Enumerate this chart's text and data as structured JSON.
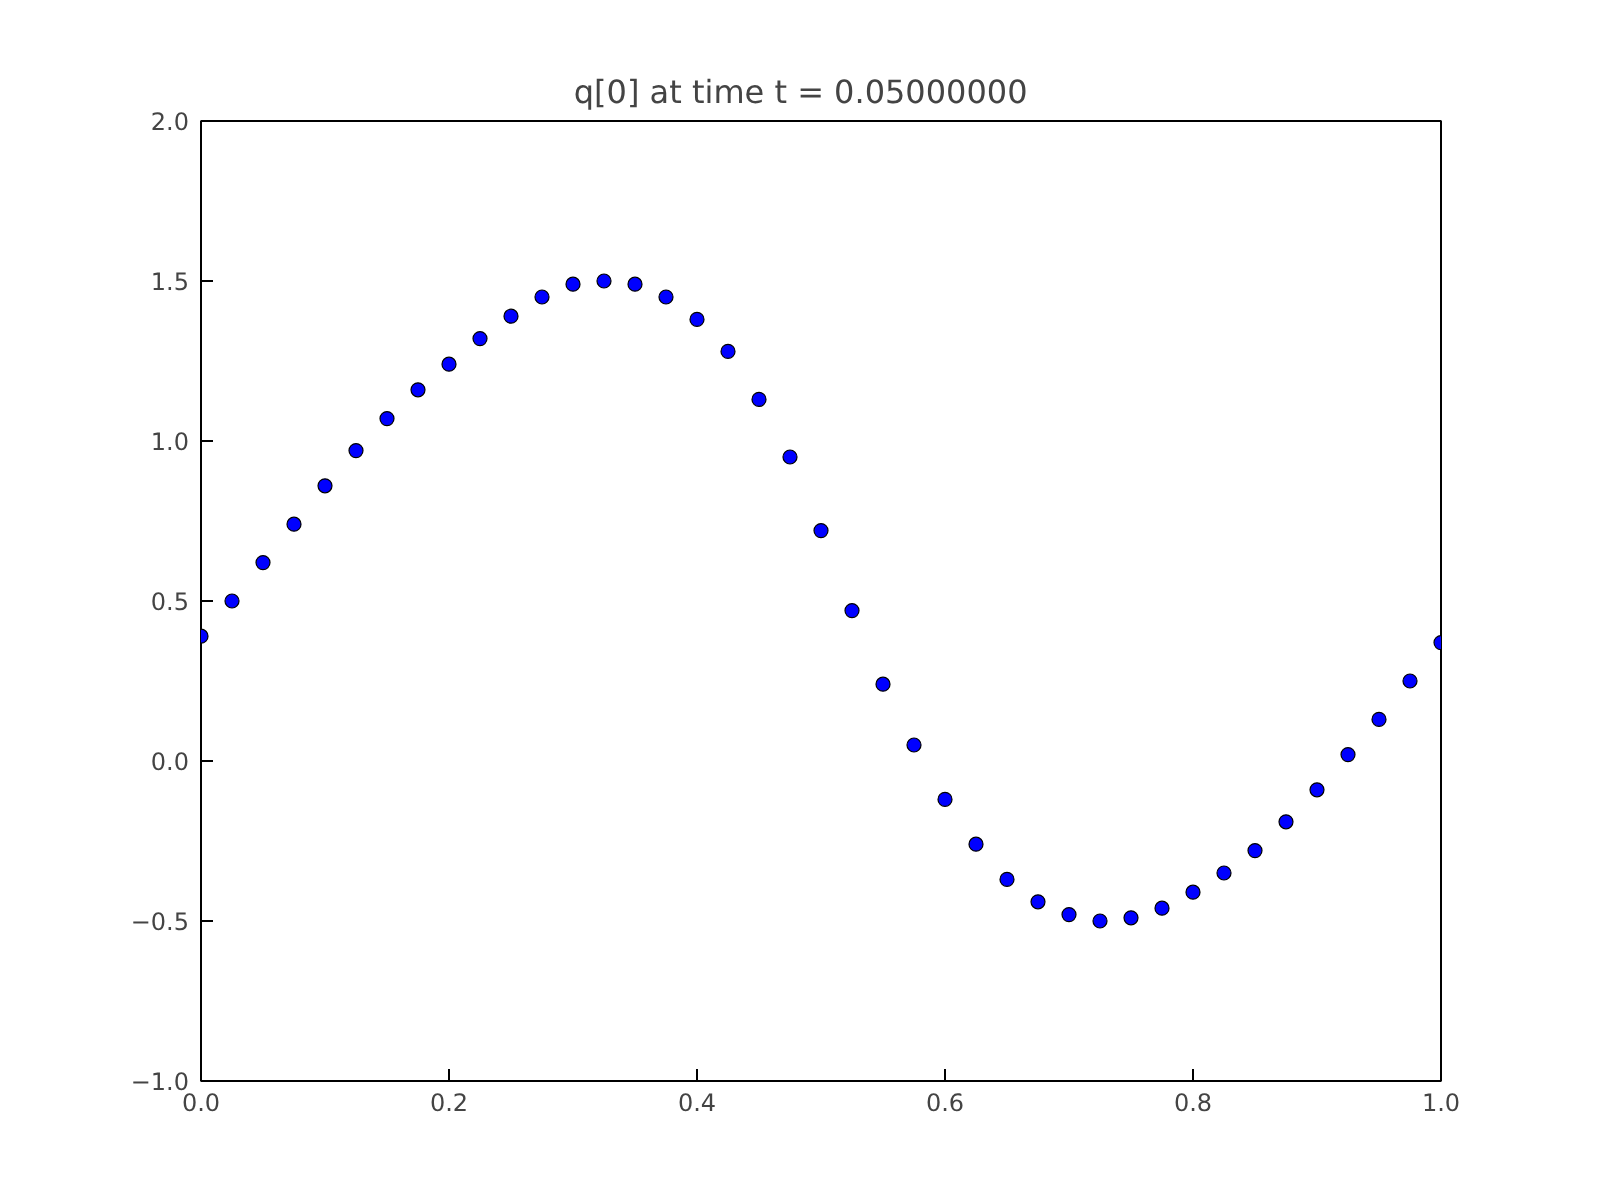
{
  "chart_data": {
    "type": "scatter",
    "title": "q[0] at time t =     0.05000000",
    "x": [
      0,
      0.025,
      0.05,
      0.075,
      0.1,
      0.125,
      0.15,
      0.175,
      0.2,
      0.225,
      0.25,
      0.275,
      0.3,
      0.325,
      0.35,
      0.375,
      0.4,
      0.425,
      0.45,
      0.475,
      0.5,
      0.525,
      0.55,
      0.575,
      0.6,
      0.625,
      0.65,
      0.675,
      0.7,
      0.725,
      0.75,
      0.775,
      0.8,
      0.825,
      0.85,
      0.875,
      0.9,
      0.925,
      0.95,
      0.975,
      1.0
    ],
    "series": [
      {
        "color": "#0000ff",
        "values": [
          0.39,
          0.5,
          0.62,
          0.74,
          0.86,
          0.97,
          1.07,
          1.16,
          1.24,
          1.32,
          1.39,
          1.45,
          1.49,
          1.5,
          1.49,
          1.45,
          1.38,
          1.28,
          1.13,
          0.95,
          0.72,
          0.47,
          0.24,
          0.05,
          -0.12,
          -0.26,
          -0.37,
          -0.44,
          -0.48,
          -0.5,
          -0.49,
          -0.46,
          -0.41,
          -0.35,
          -0.28,
          -0.19,
          -0.09,
          0.02,
          0.13,
          0.25,
          0.37
        ]
      }
    ],
    "marker": "circle",
    "grid": false,
    "xlim": [
      0,
      1
    ],
    "ylim": [
      -1,
      2
    ],
    "xticks": [
      {
        "value": 0,
        "label": "0.0"
      },
      {
        "value": 0.2,
        "label": "0.2"
      },
      {
        "value": 0.4,
        "label": "0.4"
      },
      {
        "value": 0.6,
        "label": "0.6"
      },
      {
        "value": 0.8,
        "label": "0.8"
      },
      {
        "value": 1,
        "label": "1.0"
      }
    ],
    "yticks": [
      {
        "value": -1,
        "label": "−1.0"
      },
      {
        "value": -0.5,
        "label": "−0.5"
      },
      {
        "value": 0,
        "label": "0.0"
      },
      {
        "value": 0.5,
        "label": "0.5"
      },
      {
        "value": 1,
        "label": "1.0"
      },
      {
        "value": 1.5,
        "label": "1.5"
      },
      {
        "value": 2,
        "label": "2.0"
      }
    ]
  }
}
